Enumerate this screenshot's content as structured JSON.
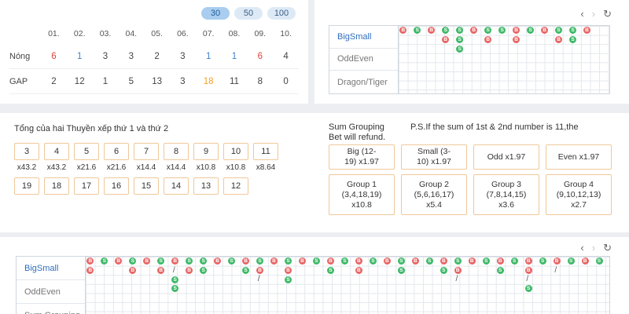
{
  "stats": {
    "range_options": [
      "30",
      "50",
      "100"
    ],
    "active_range": "30",
    "columns": [
      "01.",
      "02.",
      "03.",
      "04.",
      "05.",
      "06.",
      "07.",
      "08.",
      "09.",
      "10."
    ],
    "rows": [
      {
        "label": "Nóng",
        "values": [
          "6",
          "1",
          "3",
          "3",
          "2",
          "3",
          "1",
          "1",
          "6",
          "4"
        ],
        "colors": [
          "red",
          "blue",
          "",
          "",
          "",
          "",
          "blue",
          "blue",
          "red",
          ""
        ]
      },
      {
        "label": "GAP",
        "values": [
          "2",
          "12",
          "1",
          "5",
          "13",
          "3",
          "18",
          "11",
          "8",
          "0"
        ],
        "colors": [
          "",
          "",
          "",
          "",
          "",
          "",
          "orange",
          "",
          "",
          ""
        ]
      }
    ]
  },
  "road_top": {
    "tabs": [
      "BigSmall",
      "OddEven",
      "Dragon/Tiger"
    ],
    "active_tab": "BigSmall",
    "nav": {
      "prev": "‹",
      "next": "›",
      "refresh": "↻"
    }
  },
  "bet_panel": {
    "title": "Tổng của hai Thuyền xếp thứ 1 và thứ 2",
    "numbers_row1": [
      "3",
      "4",
      "5",
      "6",
      "7",
      "8",
      "9",
      "10",
      "11"
    ],
    "odds_row1": [
      "x43.2",
      "x43.2",
      "x21.6",
      "x21.6",
      "x14.4",
      "x14.4",
      "x10.8",
      "x10.8",
      "x8.64"
    ],
    "numbers_row2": [
      "19",
      "18",
      "17",
      "16",
      "15",
      "14",
      "13",
      "12"
    ],
    "sum_grouping": "Sum Grouping Bet will refund.",
    "ps_note": "P.S.If the sum of 1st & 2nd number is 11,the",
    "bets_row1": [
      "Big (12-\n19) x1.97",
      "Small (3-\n10) x1.97",
      "Odd x1.97",
      "Even x1.97"
    ],
    "bets_row2": [
      "Group 1\n(3,4,18,19)\nx10.8",
      "Group 2\n(5,6,16,17)\nx5.4",
      "Group 3\n(7,8,14,15)\nx3.6",
      "Group 4\n(9,10,12,13)\nx2.7"
    ]
  },
  "road_bottom": {
    "tabs": [
      "BigSmall",
      "OddEven",
      "Sum Grouping"
    ],
    "active_tab": "BigSmall",
    "nav": {
      "prev": "‹",
      "next": "›",
      "refresh": "↻"
    }
  },
  "colors": {
    "big": "#e86565",
    "small": "#3fb968",
    "accent": "#f0c89a",
    "active_tab": "#2e6fc0"
  },
  "marks": {
    "big": "B",
    "small": "S",
    "slash": "/"
  }
}
